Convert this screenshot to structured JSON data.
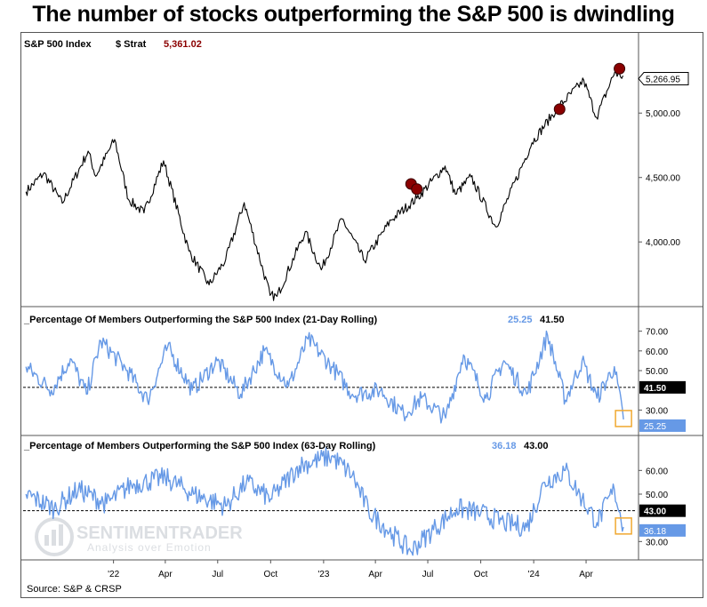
{
  "title": "The number of stocks outperforming the S&P 500 is dwindling",
  "source": "Source: S&P & CRSP",
  "watermark": {
    "brand": "SENTIMENTRADER",
    "tagline": "Analysis over Emotion"
  },
  "colors": {
    "price": "#000000",
    "signal": "#8b0000",
    "breadth": "#6699e6",
    "box": "#f0a830",
    "value_red": "#8b0000"
  },
  "chart_data": [
    {
      "type": "line",
      "panel": "price",
      "legend": {
        "name": "S&P 500 Index",
        "strat": "$ Strat",
        "value": "5,361.02"
      },
      "last_value_label": "5,266.95",
      "yticks": [
        "5,000.00",
        "4,500.00",
        "4,000.00"
      ],
      "ylim": [
        3560,
        5450
      ],
      "anchors": [
        [
          "2021-08-02",
          4390
        ],
        [
          "2021-09-02",
          4535
        ],
        [
          "2021-10-04",
          4300
        ],
        [
          "2021-11-18",
          4705
        ],
        [
          "2021-12-01",
          4510
        ],
        [
          "2022-01-03",
          4795
        ],
        [
          "2022-01-27",
          4330
        ],
        [
          "2022-02-23",
          4225
        ],
        [
          "2022-03-29",
          4630
        ],
        [
          "2022-05-12",
          3930
        ],
        [
          "2022-06-16",
          3666
        ],
        [
          "2022-07-15",
          3863
        ],
        [
          "2022-08-16",
          4305
        ],
        [
          "2022-09-30",
          3585
        ],
        [
          "2022-10-12",
          3577
        ],
        [
          "2022-11-30",
          4080
        ],
        [
          "2022-12-28",
          3783
        ],
        [
          "2023-02-02",
          4179
        ],
        [
          "2023-03-13",
          3855
        ],
        [
          "2023-04-28",
          4169
        ],
        [
          "2023-06-12",
          4338
        ],
        [
          "2023-07-31",
          4589
        ],
        [
          "2023-08-18",
          4370
        ],
        [
          "2023-09-14",
          4505
        ],
        [
          "2023-10-27",
          4117
        ],
        [
          "2023-12-29",
          4770
        ],
        [
          "2024-02-09",
          5026
        ],
        [
          "2024-03-28",
          5254
        ],
        [
          "2024-04-19",
          4967
        ],
        [
          "2024-05-21",
          5321
        ],
        [
          "2024-05-31",
          5278
        ],
        [
          "2024-06-04",
          5291
        ]
      ],
      "signals": [
        {
          "date": "2023-06-02",
          "value": 4450
        },
        {
          "date": "2023-06-12",
          "value": 4410
        },
        {
          "date": "2024-02-15",
          "value": 5030
        },
        {
          "date": "2024-05-29",
          "value": 5345
        }
      ],
      "x_range": [
        "2021-07-28",
        "2024-06-28"
      ]
    },
    {
      "type": "line",
      "panel": "breadth21",
      "title": "_Percentage Of Members Outperforming the S&P 500 Index (21-Day Rolling)",
      "value": "25.25",
      "reference": "41.50",
      "reference_value": 41.5,
      "yticks": [
        "70.00",
        "60.00",
        "50.00",
        "30.00"
      ],
      "ylim": [
        18,
        73
      ],
      "anchors": [
        [
          "2021-08-02",
          52
        ],
        [
          "2021-09-15",
          40
        ],
        [
          "2021-10-18",
          56
        ],
        [
          "2021-11-15",
          38
        ],
        [
          "2021-12-10",
          65
        ],
        [
          "2022-01-25",
          50
        ],
        [
          "2022-03-01",
          35
        ],
        [
          "2022-04-05",
          62
        ],
        [
          "2022-05-18",
          40
        ],
        [
          "2022-06-30",
          55
        ],
        [
          "2022-08-10",
          38
        ],
        [
          "2022-09-20",
          60
        ],
        [
          "2022-11-01",
          42
        ],
        [
          "2022-12-05",
          66
        ],
        [
          "2023-01-15",
          52
        ],
        [
          "2023-02-20",
          38
        ],
        [
          "2023-04-10",
          40
        ],
        [
          "2023-05-20",
          28
        ],
        [
          "2023-06-20",
          36
        ],
        [
          "2023-08-01",
          26
        ],
        [
          "2023-09-01",
          58
        ],
        [
          "2023-10-10",
          36
        ],
        [
          "2023-11-10",
          55
        ],
        [
          "2023-12-20",
          38
        ],
        [
          "2024-01-25",
          68
        ],
        [
          "2024-02-25",
          35
        ],
        [
          "2024-03-25",
          55
        ],
        [
          "2024-04-20",
          36
        ],
        [
          "2024-05-20",
          52
        ],
        [
          "2024-06-05",
          25.25
        ]
      ]
    },
    {
      "type": "line",
      "panel": "breadth63",
      "title": "_Percentage of Members Outperforming the S&P 500 Index (63-Day Rolling)",
      "value": "36.18",
      "reference": "43.00",
      "reference_value": 43,
      "yticks": [
        "60.00",
        "50.00",
        "30.00"
      ],
      "ylim": [
        23,
        68
      ],
      "anchors": [
        [
          "2021-08-02",
          50
        ],
        [
          "2021-09-20",
          44
        ],
        [
          "2021-11-01",
          52
        ],
        [
          "2021-12-20",
          46
        ],
        [
          "2022-02-01",
          54
        ],
        [
          "2022-04-01",
          57
        ],
        [
          "2022-05-20",
          50
        ],
        [
          "2022-07-15",
          45
        ],
        [
          "2022-08-20",
          55
        ],
        [
          "2022-10-01",
          48
        ],
        [
          "2022-11-20",
          62
        ],
        [
          "2023-01-15",
          66
        ],
        [
          "2023-02-20",
          58
        ],
        [
          "2023-03-20",
          43
        ],
        [
          "2023-05-01",
          33
        ],
        [
          "2023-06-01",
          26
        ],
        [
          "2023-07-15",
          36
        ],
        [
          "2023-08-20",
          44
        ],
        [
          "2023-10-01",
          42
        ],
        [
          "2023-11-10",
          38
        ],
        [
          "2023-12-20",
          36
        ],
        [
          "2024-01-20",
          55
        ],
        [
          "2024-02-25",
          60
        ],
        [
          "2024-03-25",
          48
        ],
        [
          "2024-04-20",
          38
        ],
        [
          "2024-05-20",
          52
        ],
        [
          "2024-06-05",
          36.18
        ]
      ]
    }
  ],
  "x_ticks": [
    {
      "date": "2022-01-01",
      "label": "'22"
    },
    {
      "date": "2022-04-01",
      "label": "Apr"
    },
    {
      "date": "2022-07-01",
      "label": "Jul"
    },
    {
      "date": "2022-10-01",
      "label": "Oct"
    },
    {
      "date": "2023-01-01",
      "label": "'23"
    },
    {
      "date": "2023-04-01",
      "label": "Apr"
    },
    {
      "date": "2023-07-01",
      "label": "Jul"
    },
    {
      "date": "2023-10-01",
      "label": "Oct"
    },
    {
      "date": "2024-01-01",
      "label": "'24"
    },
    {
      "date": "2024-04-01",
      "label": "Apr"
    }
  ]
}
